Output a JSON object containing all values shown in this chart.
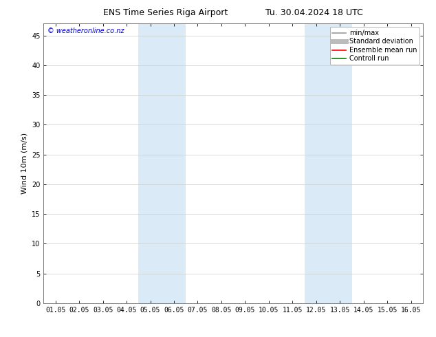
{
  "title_left": "ENS Time Series Riga Airport",
  "title_right": "Tu. 30.04.2024 18 UTC",
  "ylabel": "Wind 10m (m/s)",
  "watermark": "© weatheronline.co.nz",
  "x_tick_labels": [
    "01.05",
    "02.05",
    "03.05",
    "04.05",
    "05.05",
    "06.05",
    "07.05",
    "08.05",
    "09.05",
    "10.05",
    "11.05",
    "12.05",
    "13.05",
    "14.05",
    "15.05",
    "16.05"
  ],
  "x_tick_positions": [
    0,
    1,
    2,
    3,
    4,
    5,
    6,
    7,
    8,
    9,
    10,
    11,
    12,
    13,
    14,
    15
  ],
  "ylim": [
    0,
    47
  ],
  "yticks": [
    0,
    5,
    10,
    15,
    20,
    25,
    30,
    35,
    40,
    45
  ],
  "shaded_regions": [
    {
      "xstart": 3.5,
      "xend": 5.5,
      "color": "#daeaf6"
    },
    {
      "xstart": 10.5,
      "xend": 12.5,
      "color": "#daeaf6"
    }
  ],
  "legend_items": [
    {
      "label": "min/max",
      "color": "#999999",
      "lw": 1.2,
      "linestyle": "-"
    },
    {
      "label": "Standard deviation",
      "color": "#bbbbbb",
      "lw": 5,
      "linestyle": "-"
    },
    {
      "label": "Ensemble mean run",
      "color": "#ff0000",
      "lw": 1.2,
      "linestyle": "-"
    },
    {
      "label": "Controll run",
      "color": "#008000",
      "lw": 1.2,
      "linestyle": "-"
    }
  ],
  "bg_color": "#ffffff",
  "plot_bg_color": "#ffffff",
  "title_fontsize": 9,
  "watermark_color": "#0000cc",
  "watermark_fontsize": 7,
  "tick_fontsize": 7,
  "ylabel_fontsize": 8,
  "legend_fontsize": 7
}
